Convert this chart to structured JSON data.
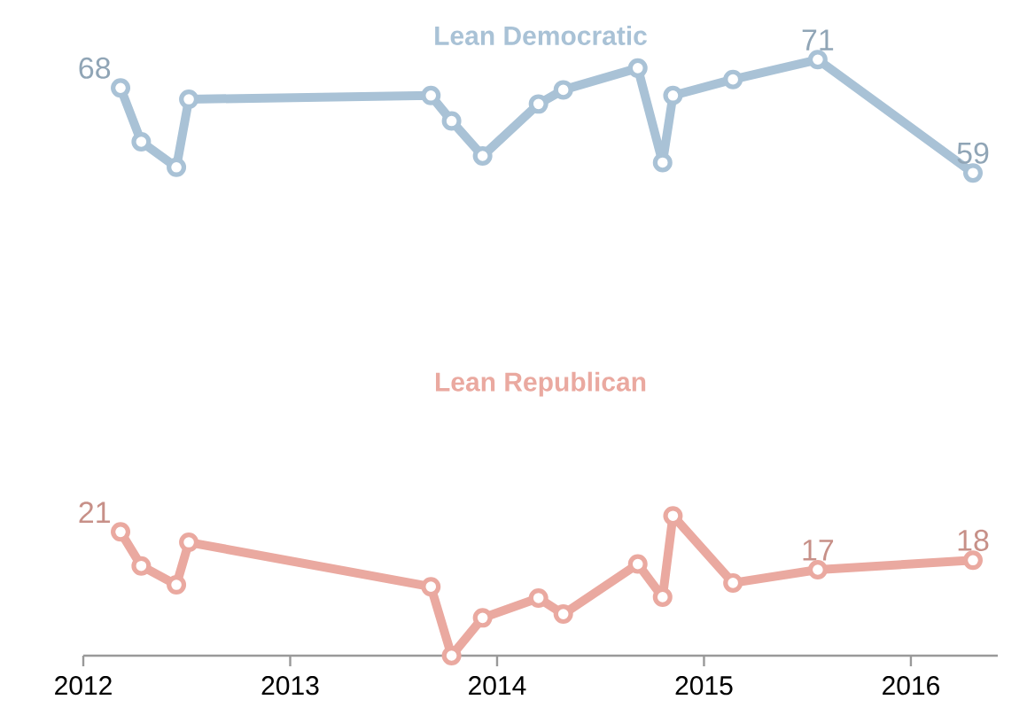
{
  "chart_data": {
    "type": "line",
    "x": [
      2012.18,
      2012.28,
      2012.45,
      2012.51,
      2013.68,
      2013.78,
      2013.93,
      2014.2,
      2014.32,
      2014.68,
      2014.8,
      2014.85,
      2015.14,
      2015.55,
      2016.3
    ],
    "series": [
      {
        "name": "Lean Democratic",
        "color": "#a9c2d6",
        "values": [
          68,
          62.3,
          59.6,
          66.8,
          67.2,
          64.5,
          60.8,
          66.3,
          67.8,
          70.1,
          60.1,
          67.2,
          68.9,
          71,
          59
        ],
        "value_labels": [
          "68",
          null,
          null,
          null,
          null,
          null,
          null,
          null,
          null,
          null,
          null,
          null,
          null,
          "71",
          "59"
        ]
      },
      {
        "name": "Lean Republican",
        "color": "#eaa9a0",
        "values": [
          21,
          17.4,
          15.4,
          19.9,
          15.2,
          7.9,
          11.9,
          14.0,
          12.3,
          17.6,
          14.1,
          22.7,
          15.6,
          17,
          18
        ],
        "value_labels": [
          "21",
          null,
          null,
          null,
          null,
          null,
          null,
          null,
          null,
          null,
          null,
          null,
          null,
          "17",
          "18"
        ]
      }
    ],
    "xlim": [
      2012,
      2016.42
    ],
    "xticks": [
      2012,
      2013,
      2014,
      2015,
      2016
    ],
    "tick_labels": "x",
    "grid": false,
    "legend": false,
    "marker": "circle",
    "line_style": "solid"
  }
}
